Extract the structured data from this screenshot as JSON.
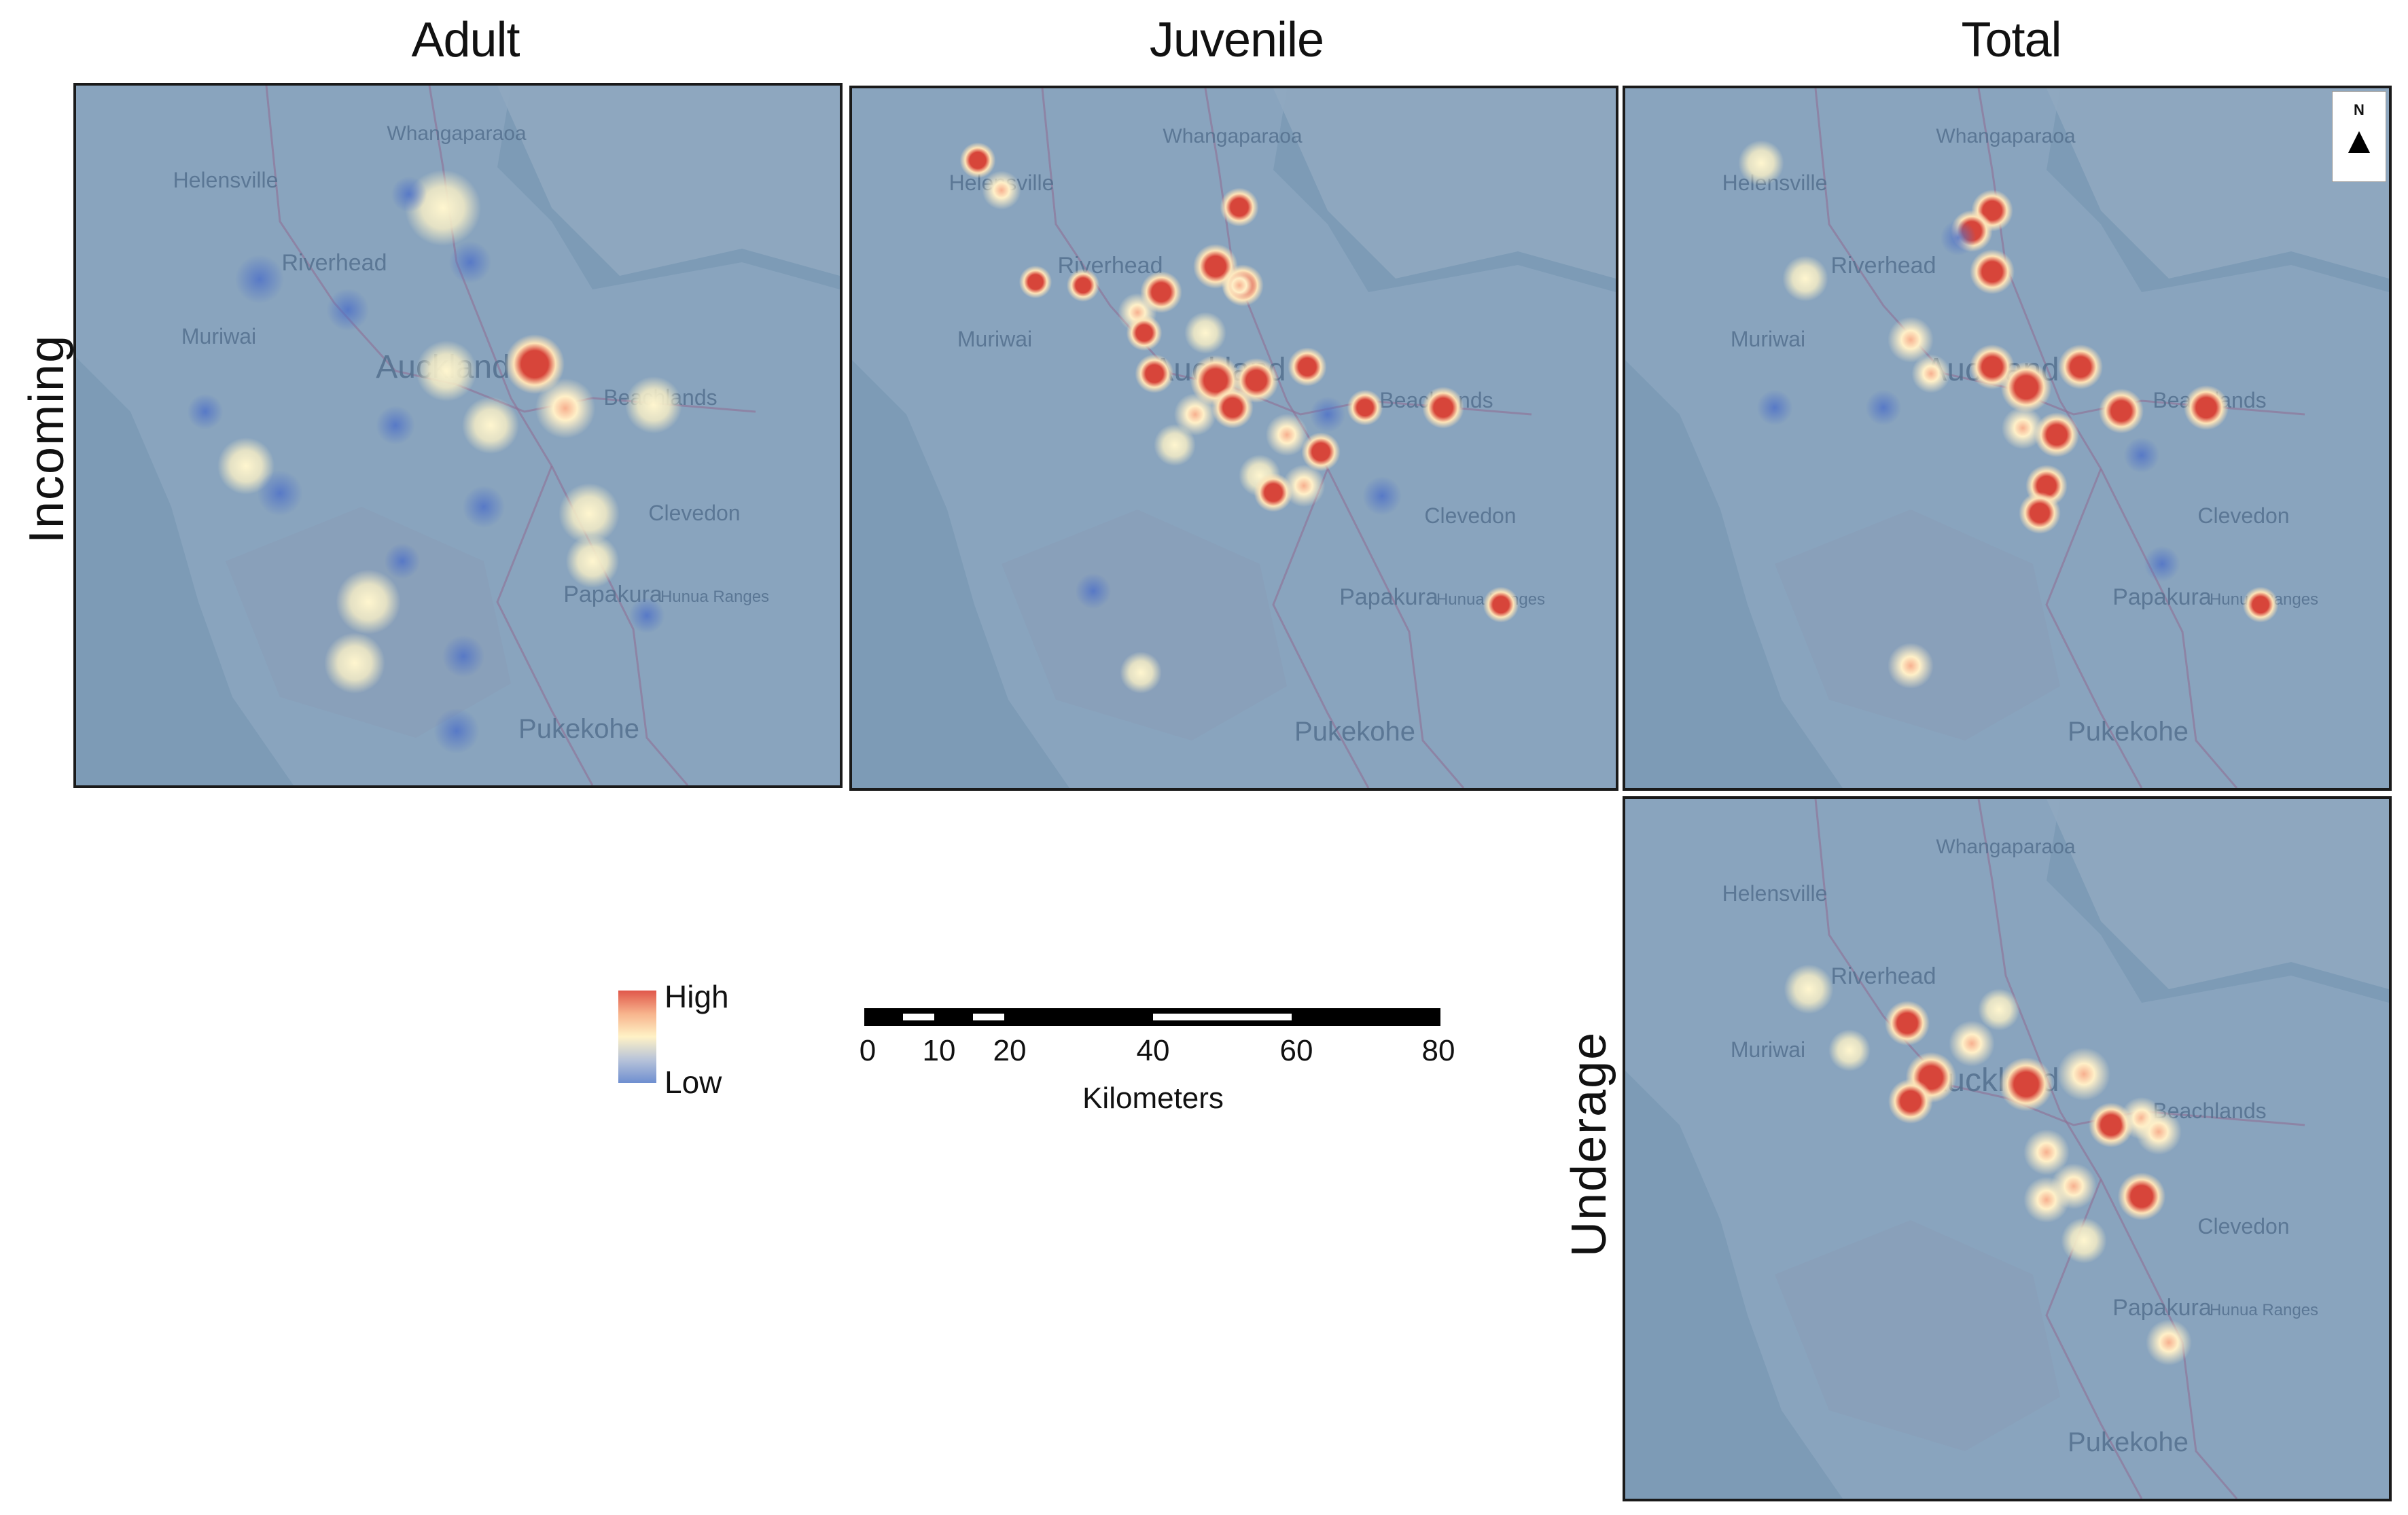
{
  "columns": {
    "adult": "Adult",
    "juvenile": "Juvenile",
    "total": "Total"
  },
  "rows": {
    "incoming": "Incoming",
    "underage": "Underage"
  },
  "places": [
    "Whangaparaoa",
    "Helensville",
    "Riverhead",
    "Muriwai",
    "Auckland",
    "Beachlands",
    "Clevedon",
    "Papakura",
    "Hunua Ranges",
    "Pukekohe"
  ],
  "legend": {
    "high": "High",
    "low": "Low"
  },
  "scale": {
    "ticks": [
      "0",
      "10",
      "20",
      "40",
      "60",
      "80"
    ],
    "unit": "Kilometers"
  },
  "north": "N",
  "colors": {
    "high": "#d7453a",
    "mid": "#fff3bd",
    "low": "#5b7cc8",
    "base": "#7f9cb8",
    "land": "#92aac2"
  }
}
